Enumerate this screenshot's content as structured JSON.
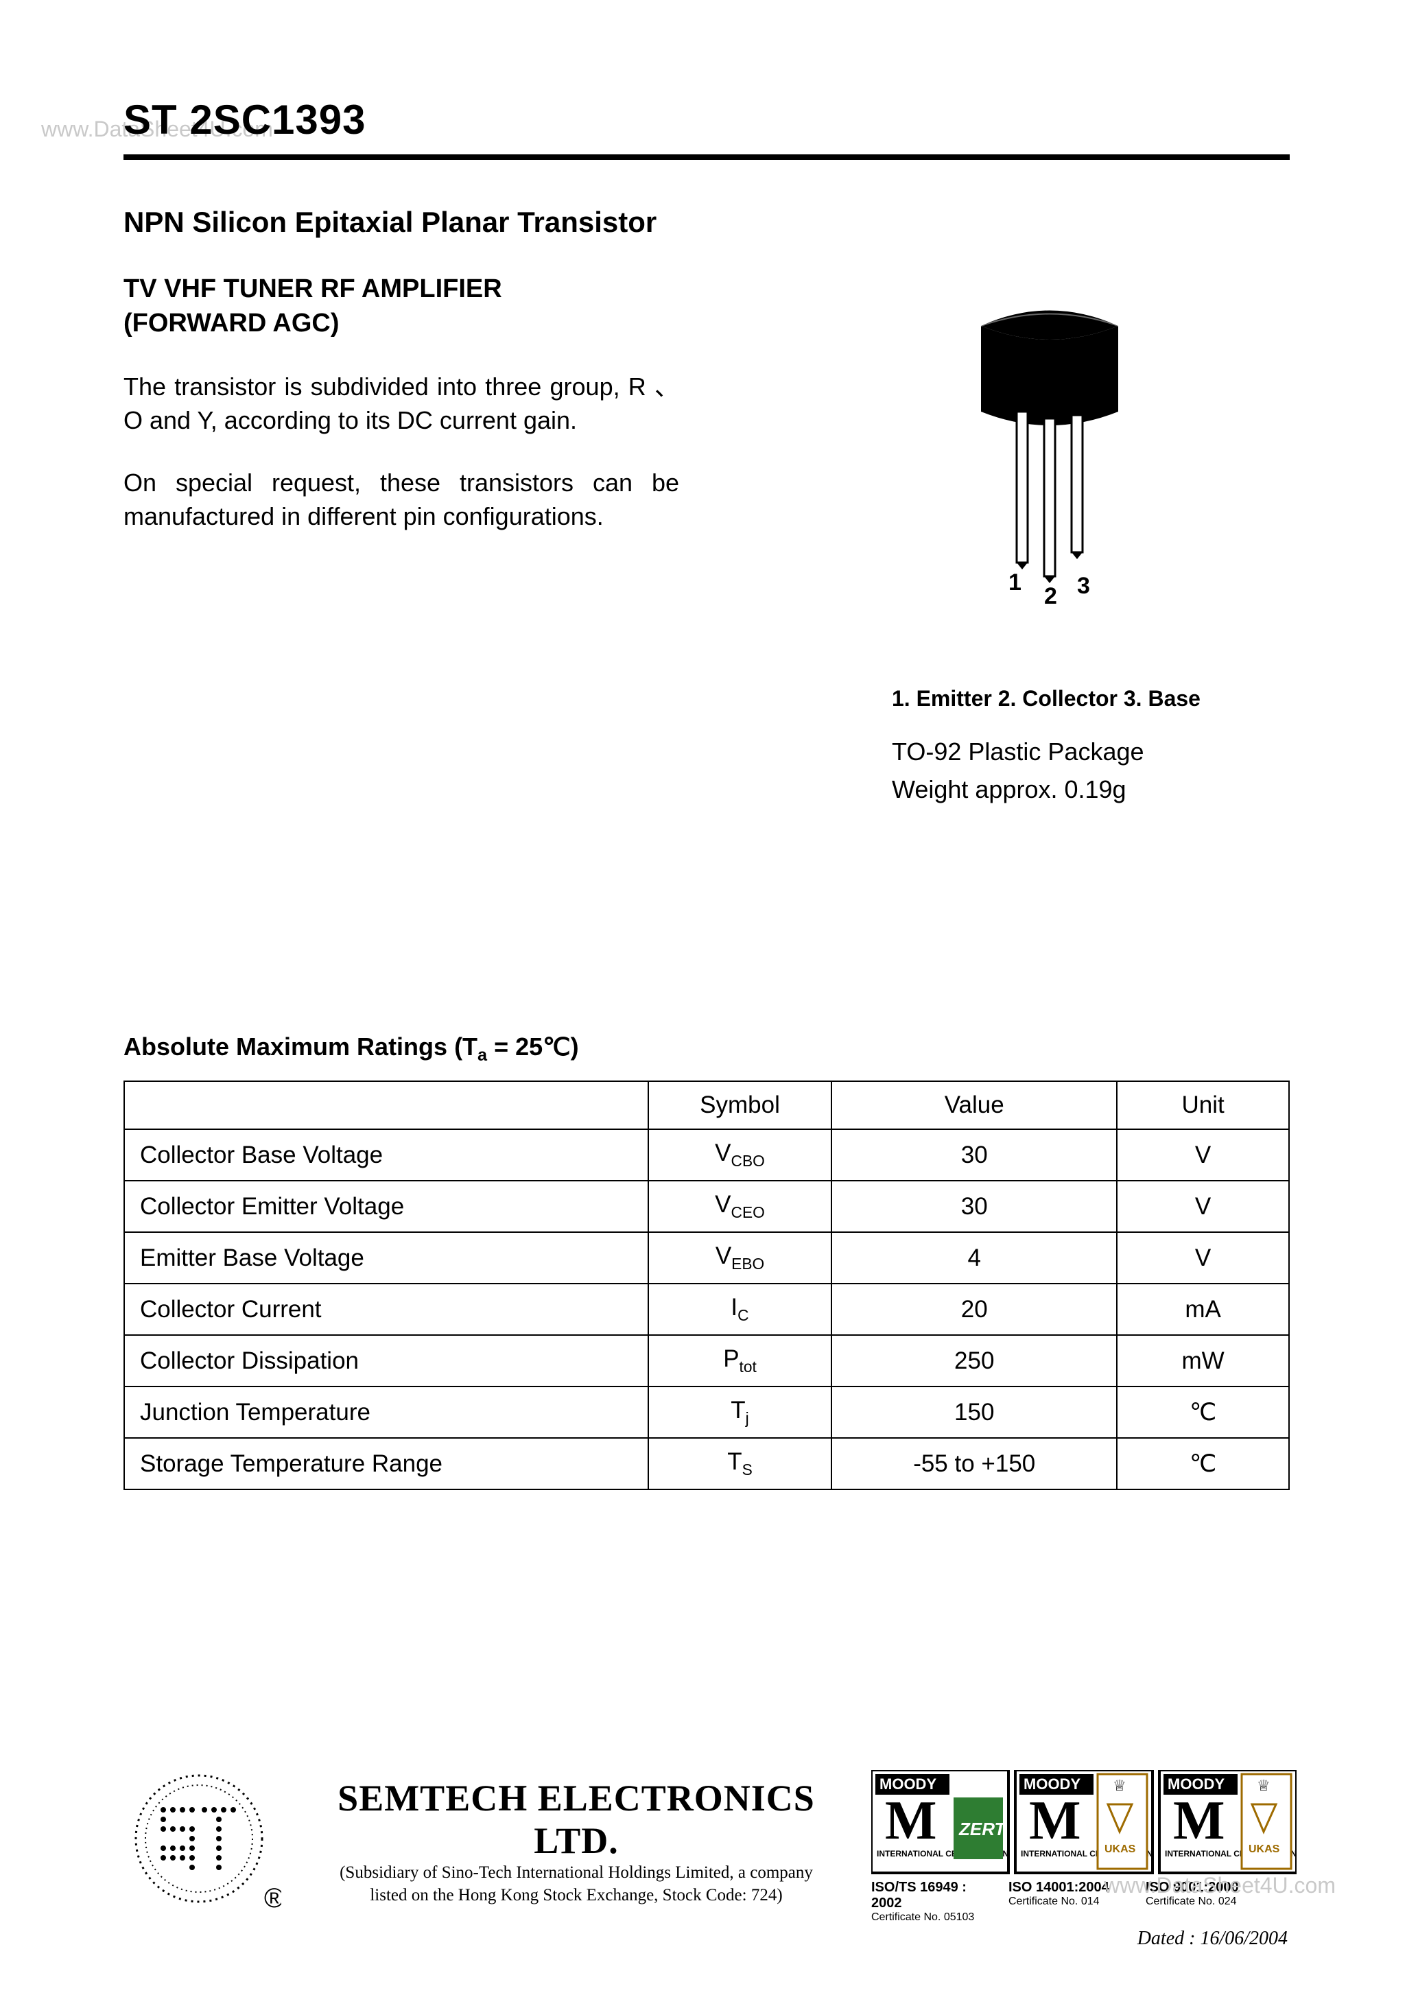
{
  "watermark": {
    "top": "www.DataSheet4U.com",
    "bottom": "www.DataSheet4U.com"
  },
  "header": {
    "part_number": "ST 2SC1393"
  },
  "intro": {
    "title": "NPN Silicon Epitaxial Planar Transistor",
    "subtitle1": "TV VHF TUNER RF AMPLIFIER",
    "subtitle2": "(FORWARD AGC)",
    "para1": "The transistor is subdivided into three group, R 、 O and Y, according to its DC current gain.",
    "para2": "On special request, these transistors can be manufactured in different pin configurations."
  },
  "package": {
    "diagram": {
      "body_fill": "#000000",
      "lead_fill": "#ffffff",
      "stroke": "#000000",
      "labels": [
        "1",
        "2",
        "3"
      ],
      "label_fontsize": 32
    },
    "pinout": "1. Emitter  2. Collector  3. Base",
    "name": "TO-92 Plastic Package",
    "weight": "Weight approx. 0.19g"
  },
  "ratings": {
    "title_prefix": "Absolute Maximum Ratings (T",
    "title_sub": "a",
    "title_suffix": " = 25℃)",
    "columns": [
      "",
      "Symbol",
      "Value",
      "Unit"
    ],
    "rows": [
      {
        "param": "Collector Base Voltage",
        "sym": "V",
        "sub": "CBO",
        "value": "30",
        "unit": "V"
      },
      {
        "param": "Collector Emitter Voltage",
        "sym": "V",
        "sub": "CEO",
        "value": "30",
        "unit": "V"
      },
      {
        "param": "Emitter Base Voltage",
        "sym": "V",
        "sub": "EBO",
        "value": "4",
        "unit": "V"
      },
      {
        "param": "Collector Current",
        "sym": "I",
        "sub": "C",
        "value": "20",
        "unit": "mA"
      },
      {
        "param": "Collector Dissipation",
        "sym": "P",
        "sub": "tot",
        "value": "250",
        "unit": "mW"
      },
      {
        "param": "Junction Temperature",
        "sym": "T",
        "sub": "j",
        "value": "150",
        "unit": "℃"
      },
      {
        "param": "Storage Temperature Range",
        "sym": "T",
        "sub": "S",
        "value": "-55 to +150",
        "unit": "℃"
      }
    ],
    "border_color": "#000000",
    "font_size": 35
  },
  "footer": {
    "company": "SEMTECH ELECTRONICS LTD.",
    "sub1": "(Subsidiary of Sino-Tech International Holdings Limited, a company",
    "sub2": "listed on the Hong Kong Stock Exchange, Stock Code: 724)",
    "logo": {
      "stroke": "#000000",
      "fill": "#ffffff",
      "reg_mark": "®",
      "text": "ST"
    },
    "cert": {
      "logo_text": "M",
      "logo_fill": "#000000",
      "logo_accent1": "#2e7d32",
      "logo_accent2": "#9e6b00",
      "brand": "MOODY",
      "sub_label": "INTERNATIONAL CERTIFICATION",
      "zert": "ZERT",
      "ukas": "UKAS"
    },
    "iso": [
      {
        "std": "ISO/TS 16949 : 2002",
        "cert": "Certificate No. 05103"
      },
      {
        "std": "ISO 14001:2004",
        "cert": "Certificate No. 014"
      },
      {
        "std": "ISO 9001:2000",
        "cert": "Certificate No. 024"
      }
    ],
    "dated": "Dated : 16/06/2004"
  }
}
